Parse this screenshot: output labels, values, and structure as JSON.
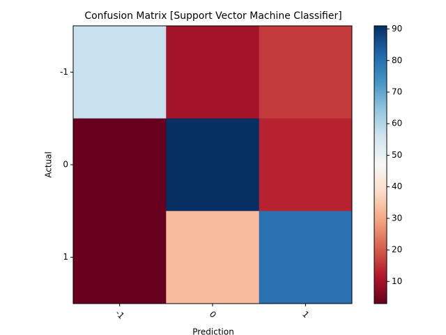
{
  "chart_data": {
    "type": "heatmap",
    "title": "Confusion Matrix [Support Vector Machine Classifier]",
    "xlabel": "Prediction",
    "ylabel": "Actual",
    "x_categories": [
      "-1",
      "0",
      "1"
    ],
    "y_categories": [
      "-1",
      "0",
      "1"
    ],
    "values": [
      [
        57,
        10,
        16
      ],
      [
        3,
        91,
        13
      ],
      [
        3,
        33,
        80
      ]
    ],
    "colormap": "RdBu",
    "clim": [
      3,
      91
    ],
    "cticks": [
      10,
      20,
      30,
      40,
      50,
      60,
      70,
      80,
      90
    ]
  }
}
